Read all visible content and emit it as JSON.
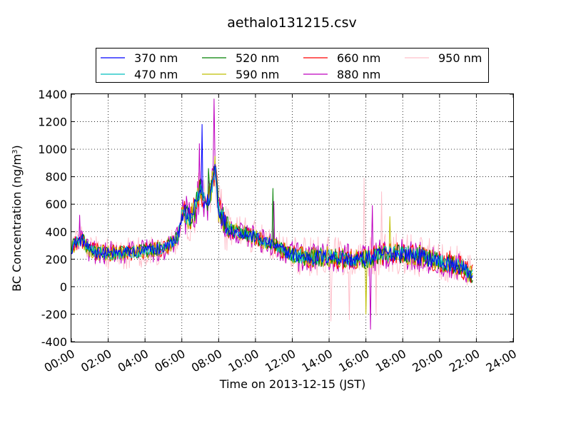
{
  "chart_data": {
    "type": "line",
    "title": "aethalo131215.csv",
    "xlabel": "Time on 2013-12-15 (JST)",
    "ylabel": "BC Concentration (ng/m",
    "ylabel_sup": "3",
    "ylabel_end": ")",
    "xlim": [
      0,
      24
    ],
    "ylim": [
      -400,
      1400
    ],
    "x_ticks": [
      0,
      2,
      4,
      6,
      8,
      10,
      12,
      14,
      16,
      18,
      20,
      22,
      24
    ],
    "x_tick_labels": [
      "00:00",
      "02:00",
      "04:00",
      "06:00",
      "08:00",
      "10:00",
      "12:00",
      "14:00",
      "16:00",
      "18:00",
      "20:00",
      "22:00",
      "24:00"
    ],
    "y_ticks": [
      -400,
      -200,
      0,
      200,
      400,
      600,
      800,
      1000,
      1200,
      1400
    ],
    "y_tick_labels": [
      "-400",
      "-200",
      "0",
      "200",
      "400",
      "600",
      "800",
      "1000",
      "1200",
      "1400"
    ],
    "grid": true,
    "legend_position": "top-outside",
    "x_end": 21.8,
    "sample_step": 0.05,
    "baseline": {
      "x": [
        0,
        0.3,
        0.6,
        1,
        2,
        3,
        4,
        5,
        5.5,
        5.8,
        6,
        6.5,
        6.8,
        7,
        7.3,
        7.6,
        7.8,
        8,
        8.5,
        9,
        10,
        11,
        12,
        13,
        14,
        15,
        16,
        17,
        18,
        19,
        20,
        21,
        21.8
      ],
      "y": [
        280,
        330,
        340,
        260,
        240,
        250,
        260,
        280,
        320,
        360,
        540,
        500,
        600,
        720,
        580,
        700,
        880,
        560,
        420,
        400,
        360,
        300,
        230,
        210,
        220,
        200,
        200,
        240,
        240,
        220,
        180,
        150,
        90
      ]
    },
    "series": [
      {
        "name": "370 nm",
        "color": "#0000ff",
        "noise": 45,
        "peaks": [
          [
            7.1,
            1180
          ]
        ]
      },
      {
        "name": "470 nm",
        "color": "#00bfbf",
        "noise": 45,
        "peaks": []
      },
      {
        "name": "520 nm",
        "color": "#008000",
        "noise": 55,
        "peaks": [
          [
            10.95,
            715
          ],
          [
            7.45,
            860
          ]
        ]
      },
      {
        "name": "590 nm",
        "color": "#bfbf00",
        "noise": 60,
        "peaks": [
          [
            17.3,
            510
          ],
          [
            16.0,
            -200
          ]
        ]
      },
      {
        "name": "660 nm",
        "color": "#ff0000",
        "noise": 65,
        "peaks": [
          [
            20.55,
            260
          ]
        ]
      },
      {
        "name": "880 nm",
        "color": "#bf00bf",
        "noise": 90,
        "peaks": [
          [
            7.75,
            1365
          ],
          [
            6.95,
            1040
          ],
          [
            0.45,
            520
          ],
          [
            16.35,
            590
          ],
          [
            16.25,
            -310
          ],
          [
            11.0,
            620
          ]
        ]
      },
      {
        "name": "950 nm",
        "color": "#ffc0cb",
        "noise": 120,
        "peaks": [
          [
            15.9,
            790
          ],
          [
            16.85,
            690
          ],
          [
            14.1,
            -250
          ],
          [
            15.1,
            -240
          ],
          [
            16.55,
            -210
          ]
        ]
      }
    ]
  }
}
